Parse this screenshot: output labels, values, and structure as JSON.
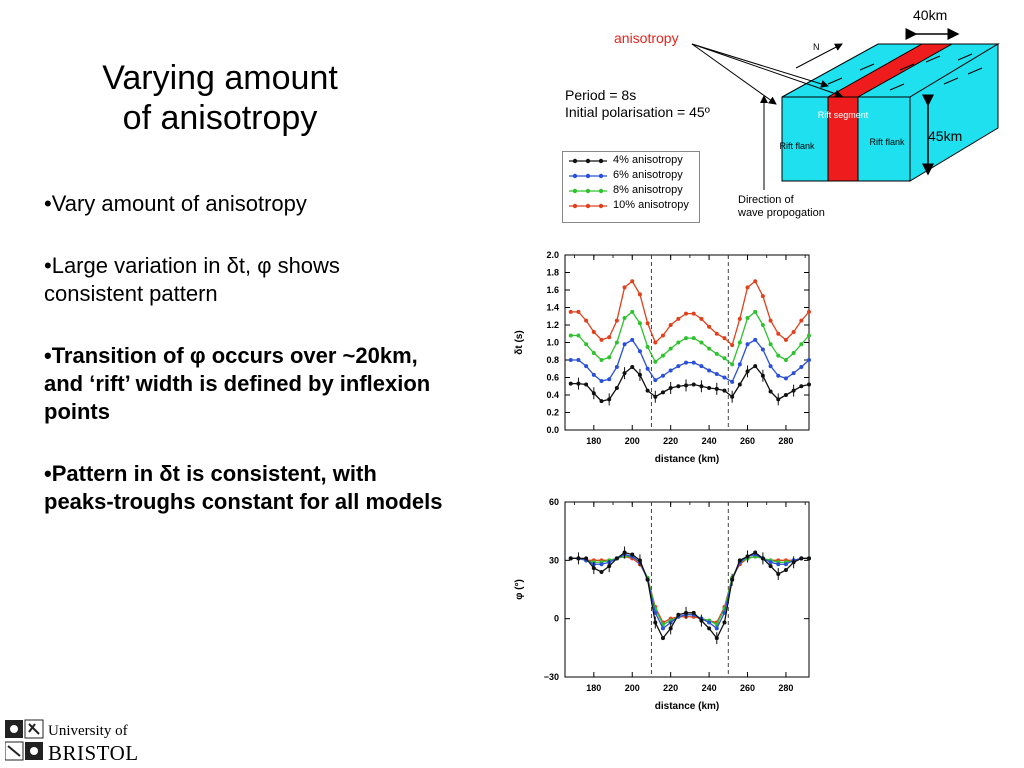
{
  "slide": {
    "title_line1": "Varying amount",
    "title_line2": "of anisotropy",
    "bullets": [
      {
        "lead": "•",
        "text": "Vary amount of anisotropy"
      },
      {
        "lead": "•",
        "text_a": "Large variation in ",
        "sym1": "δ",
        "text_b": "t, ",
        "sym2": "φ",
        "text_c": " shows consistent pattern"
      },
      {
        "lead": "•",
        "text_a": "Transition of ",
        "sym1": "φ",
        "text_b": " occurs over ~20km, and ‘rift’ width is defined by inflexion points"
      },
      {
        "lead": "•",
        "text_a": "Pattern in ",
        "sym1": "δ",
        "text_b": "t is consistent, with peaks-troughs constant for all models"
      }
    ]
  },
  "diagram": {
    "anisotropy_label": "anisotropy",
    "width_label": "40km",
    "depth_label": "45km",
    "north_label": "N",
    "rift_segment": "Rift segment",
    "rift_flank_left": "Rift flank",
    "rift_flank_right": "Rift flank",
    "direction_line1": "Direction of",
    "direction_line2": "wave propogation",
    "period": "Period = 8s",
    "polarisation": "Initial polarisation = 45º",
    "colors": {
      "cyan": "#1fe0ee",
      "red": "#ee1c1c",
      "label_red": "#e8241c"
    }
  },
  "legend": [
    {
      "label": "4% anisotropy",
      "color": "#111111"
    },
    {
      "label": "6% anisotropy",
      "color": "#2a4fd9"
    },
    {
      "label": "8% anisotropy",
      "color": "#2fc22f"
    },
    {
      "label": "10% anisotropy",
      "color": "#e0401c"
    }
  ],
  "chart_data": [
    {
      "type": "line",
      "xlabel": "distance (km)",
      "ylabel": "δt (s)",
      "xlim": [
        165,
        292
      ],
      "ylim": [
        0,
        2
      ],
      "xticks": [
        180,
        200,
        220,
        240,
        260,
        280
      ],
      "yticks": [
        "0.0",
        "0.2",
        "0.4",
        "0.6",
        "0.8",
        "1.0",
        "1.2",
        "1.4",
        "1.6",
        "1.8",
        "2.0"
      ],
      "vlines": [
        210,
        250
      ],
      "x": [
        168,
        172,
        176,
        180,
        184,
        188,
        192,
        196,
        200,
        204,
        208,
        212,
        216,
        220,
        224,
        228,
        232,
        236,
        240,
        244,
        248,
        252,
        256,
        260,
        264,
        268,
        272,
        276,
        280,
        284,
        288,
        292
      ],
      "series": [
        {
          "color": "#111111",
          "values": [
            0.53,
            0.53,
            0.52,
            0.42,
            0.33,
            0.35,
            0.48,
            0.65,
            0.72,
            0.63,
            0.45,
            0.38,
            0.43,
            0.48,
            0.5,
            0.51,
            0.52,
            0.5,
            0.48,
            0.47,
            0.45,
            0.38,
            0.52,
            0.67,
            0.73,
            0.62,
            0.44,
            0.35,
            0.4,
            0.45,
            0.5,
            0.52
          ]
        },
        {
          "color": "#2a4fd9",
          "values": [
            0.8,
            0.8,
            0.73,
            0.63,
            0.56,
            0.58,
            0.72,
            0.98,
            1.03,
            0.9,
            0.7,
            0.57,
            0.62,
            0.68,
            0.73,
            0.77,
            0.77,
            0.73,
            0.68,
            0.64,
            0.6,
            0.55,
            0.75,
            0.98,
            1.03,
            0.92,
            0.73,
            0.62,
            0.59,
            0.65,
            0.72,
            0.8
          ]
        },
        {
          "color": "#2fc22f",
          "values": [
            1.08,
            1.08,
            0.98,
            0.88,
            0.8,
            0.83,
            1.0,
            1.28,
            1.35,
            1.22,
            0.95,
            0.78,
            0.85,
            0.93,
            1.0,
            1.05,
            1.05,
            1.0,
            0.93,
            0.87,
            0.82,
            0.75,
            1.0,
            1.28,
            1.35,
            1.2,
            0.98,
            0.85,
            0.8,
            0.88,
            0.98,
            1.08
          ]
        },
        {
          "color": "#e0401c",
          "values": [
            1.35,
            1.35,
            1.25,
            1.12,
            1.03,
            1.06,
            1.25,
            1.63,
            1.7,
            1.55,
            1.22,
            1.0,
            1.08,
            1.2,
            1.27,
            1.33,
            1.33,
            1.27,
            1.18,
            1.1,
            1.05,
            0.97,
            1.27,
            1.63,
            1.7,
            1.53,
            1.25,
            1.1,
            1.03,
            1.12,
            1.25,
            1.35
          ]
        }
      ]
    },
    {
      "type": "line",
      "xlabel": "distance (km)",
      "ylabel": "φ (°)",
      "xlim": [
        165,
        292
      ],
      "ylim": [
        -30,
        60
      ],
      "xticks": [
        180,
        200,
        220,
        240,
        260,
        280
      ],
      "yticks": [
        "−30",
        "0",
        "30",
        "60"
      ],
      "vlines": [
        210,
        250
      ],
      "x": [
        168,
        172,
        176,
        180,
        184,
        188,
        192,
        196,
        200,
        204,
        208,
        212,
        216,
        220,
        224,
        228,
        232,
        236,
        240,
        244,
        248,
        252,
        256,
        260,
        264,
        268,
        272,
        276,
        280,
        284,
        288,
        292
      ],
      "series": [
        {
          "color": "#111111",
          "values": [
            31,
            31,
            31,
            26,
            24,
            27,
            31,
            34,
            33,
            30,
            20,
            -2,
            -10,
            -5,
            2,
            3,
            3,
            -1,
            -5,
            -10,
            -2,
            20,
            30,
            32,
            34,
            31,
            27,
            23,
            25,
            29,
            31,
            31
          ]
        },
        {
          "color": "#2a4fd9",
          "values": [
            31,
            31,
            30,
            28,
            28,
            29,
            31,
            33,
            32,
            29,
            20,
            3,
            -5,
            -2,
            1,
            2,
            2,
            0,
            -2,
            -5,
            3,
            20,
            29,
            32,
            33,
            31,
            29,
            28,
            28,
            30,
            31,
            31
          ]
        },
        {
          "color": "#2fc22f",
          "values": [
            31,
            31,
            30,
            29,
            29,
            30,
            31,
            32,
            32,
            29,
            21,
            5,
            -3,
            -1,
            1,
            2,
            2,
            0,
            -1,
            -3,
            5,
            21,
            29,
            31,
            32,
            31,
            30,
            29,
            29,
            30,
            31,
            31
          ]
        },
        {
          "color": "#e0401c",
          "values": [
            31,
            31,
            30,
            30,
            30,
            30,
            31,
            32,
            31,
            28,
            21,
            6,
            -2,
            0,
            1,
            1,
            1,
            0,
            -1,
            -2,
            6,
            21,
            28,
            31,
            32,
            31,
            30,
            30,
            30,
            30,
            31,
            31
          ]
        }
      ]
    }
  ],
  "logo": {
    "line1": "University of",
    "line2": "BRISTOL"
  }
}
